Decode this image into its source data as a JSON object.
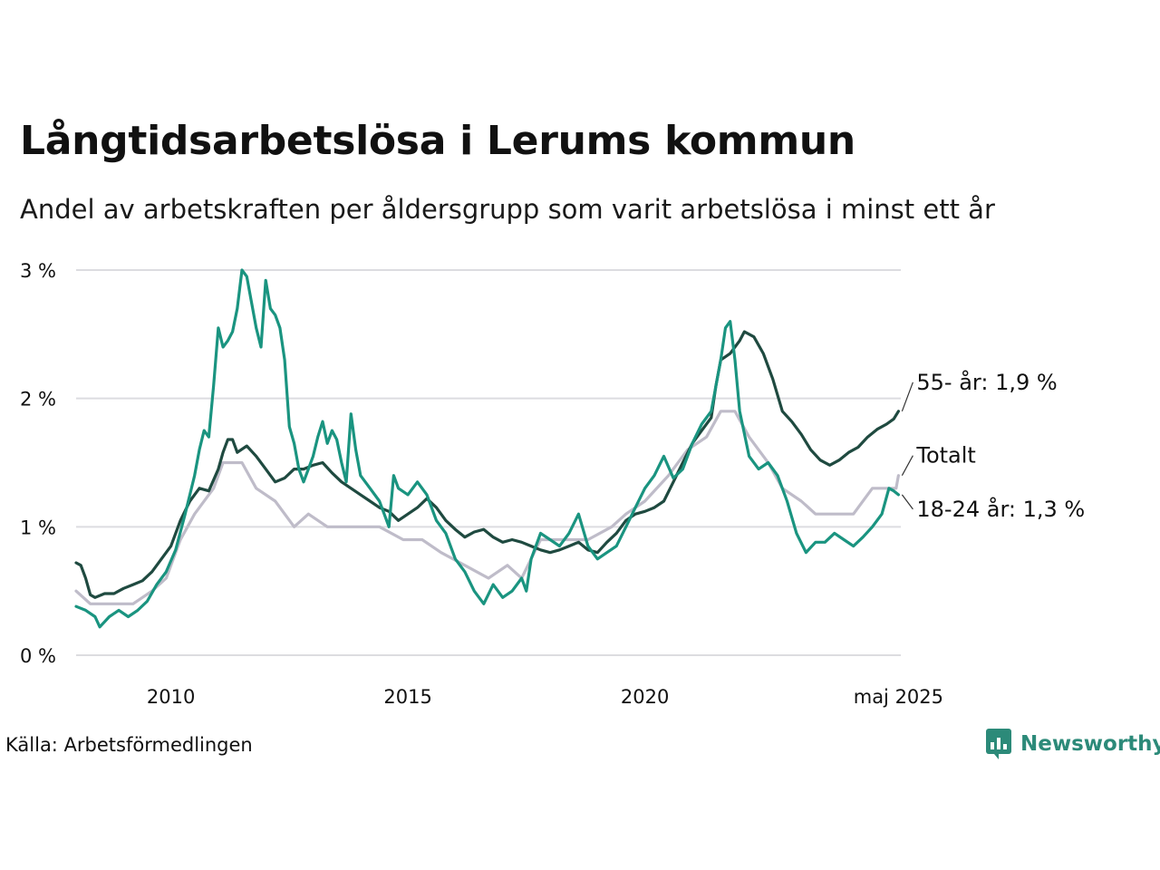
{
  "header": {
    "title": "Långtidsarbetslösa i Lerums kommun",
    "subtitle": "Andel av arbetskraften per åldersgrupp som varit arbetslösa i minst ett år"
  },
  "footer": {
    "source": "Källa: Arbetsförmedlingen",
    "brand": "Newsworthy",
    "brand_icon": "newsworthy-logo-icon",
    "brand_color": "#2c8a79"
  },
  "chart_data": {
    "type": "line",
    "ylim": [
      0,
      3
    ],
    "xlim": [
      2008.0,
      2025.4
    ],
    "y_ticks": [
      0,
      1,
      2,
      3
    ],
    "y_tick_labels": [
      "0 %",
      "1 %",
      "2 %",
      "3 %"
    ],
    "x_ticks": [
      2010,
      2015,
      2020,
      2025.35
    ],
    "x_tick_labels": [
      "2010",
      "2015",
      "2020",
      "maj 2025"
    ],
    "grid": true,
    "series": [
      {
        "name": "Totalt",
        "end_label": "Totalt",
        "color": "#bfbcc9",
        "points": [
          [
            2008.0,
            0.5
          ],
          [
            2008.3,
            0.4
          ],
          [
            2008.7,
            0.4
          ],
          [
            2009.2,
            0.4
          ],
          [
            2009.6,
            0.5
          ],
          [
            2009.9,
            0.6
          ],
          [
            2010.2,
            0.9
          ],
          [
            2010.5,
            1.1
          ],
          [
            2010.9,
            1.3
          ],
          [
            2011.1,
            1.5
          ],
          [
            2011.5,
            1.5
          ],
          [
            2011.8,
            1.3
          ],
          [
            2012.2,
            1.2
          ],
          [
            2012.6,
            1.0
          ],
          [
            2012.9,
            1.1
          ],
          [
            2013.3,
            1.0
          ],
          [
            2013.8,
            1.0
          ],
          [
            2014.4,
            1.0
          ],
          [
            2014.9,
            0.9
          ],
          [
            2015.3,
            0.9
          ],
          [
            2015.7,
            0.8
          ],
          [
            2016.2,
            0.7
          ],
          [
            2016.7,
            0.6
          ],
          [
            2017.1,
            0.7
          ],
          [
            2017.4,
            0.6
          ],
          [
            2017.8,
            0.9
          ],
          [
            2018.3,
            0.9
          ],
          [
            2018.8,
            0.9
          ],
          [
            2019.3,
            1.0
          ],
          [
            2019.6,
            1.1
          ],
          [
            2020.0,
            1.2
          ],
          [
            2020.5,
            1.4
          ],
          [
            2020.9,
            1.6
          ],
          [
            2021.3,
            1.7
          ],
          [
            2021.6,
            1.9
          ],
          [
            2021.9,
            1.9
          ],
          [
            2022.2,
            1.7
          ],
          [
            2022.6,
            1.5
          ],
          [
            2022.9,
            1.3
          ],
          [
            2023.3,
            1.2
          ],
          [
            2023.6,
            1.1
          ],
          [
            2024.0,
            1.1
          ],
          [
            2024.4,
            1.1
          ],
          [
            2024.8,
            1.3
          ],
          [
            2025.1,
            1.3
          ],
          [
            2025.3,
            1.3
          ],
          [
            2025.35,
            1.4
          ]
        ]
      },
      {
        "name": "55- år",
        "end_label": "55- år: 1,9 %",
        "color": "#1f4a40",
        "points": [
          [
            2008.0,
            0.72
          ],
          [
            2008.1,
            0.7
          ],
          [
            2008.2,
            0.6
          ],
          [
            2008.3,
            0.47
          ],
          [
            2008.4,
            0.45
          ],
          [
            2008.6,
            0.48
          ],
          [
            2008.8,
            0.48
          ],
          [
            2009.0,
            0.52
          ],
          [
            2009.2,
            0.55
          ],
          [
            2009.4,
            0.58
          ],
          [
            2009.6,
            0.65
          ],
          [
            2009.8,
            0.75
          ],
          [
            2010.0,
            0.85
          ],
          [
            2010.2,
            1.05
          ],
          [
            2010.4,
            1.2
          ],
          [
            2010.6,
            1.3
          ],
          [
            2010.8,
            1.28
          ],
          [
            2011.0,
            1.45
          ],
          [
            2011.1,
            1.58
          ],
          [
            2011.2,
            1.68
          ],
          [
            2011.3,
            1.68
          ],
          [
            2011.4,
            1.58
          ],
          [
            2011.6,
            1.63
          ],
          [
            2011.8,
            1.55
          ],
          [
            2012.0,
            1.45
          ],
          [
            2012.2,
            1.35
          ],
          [
            2012.4,
            1.38
          ],
          [
            2012.6,
            1.45
          ],
          [
            2012.8,
            1.45
          ],
          [
            2013.0,
            1.48
          ],
          [
            2013.2,
            1.5
          ],
          [
            2013.4,
            1.42
          ],
          [
            2013.6,
            1.35
          ],
          [
            2013.8,
            1.3
          ],
          [
            2014.0,
            1.25
          ],
          [
            2014.2,
            1.2
          ],
          [
            2014.4,
            1.15
          ],
          [
            2014.6,
            1.12
          ],
          [
            2014.8,
            1.05
          ],
          [
            2015.0,
            1.1
          ],
          [
            2015.2,
            1.15
          ],
          [
            2015.4,
            1.22
          ],
          [
            2015.6,
            1.15
          ],
          [
            2015.8,
            1.05
          ],
          [
            2016.0,
            0.98
          ],
          [
            2016.2,
            0.92
          ],
          [
            2016.4,
            0.96
          ],
          [
            2016.6,
            0.98
          ],
          [
            2016.8,
            0.92
          ],
          [
            2017.0,
            0.88
          ],
          [
            2017.2,
            0.9
          ],
          [
            2017.4,
            0.88
          ],
          [
            2017.6,
            0.85
          ],
          [
            2017.8,
            0.82
          ],
          [
            2018.0,
            0.8
          ],
          [
            2018.2,
            0.82
          ],
          [
            2018.4,
            0.85
          ],
          [
            2018.6,
            0.88
          ],
          [
            2018.8,
            0.82
          ],
          [
            2019.0,
            0.8
          ],
          [
            2019.2,
            0.88
          ],
          [
            2019.4,
            0.95
          ],
          [
            2019.6,
            1.05
          ],
          [
            2019.8,
            1.1
          ],
          [
            2020.0,
            1.12
          ],
          [
            2020.2,
            1.15
          ],
          [
            2020.4,
            1.2
          ],
          [
            2020.6,
            1.35
          ],
          [
            2020.8,
            1.5
          ],
          [
            2021.0,
            1.65
          ],
          [
            2021.2,
            1.75
          ],
          [
            2021.4,
            1.85
          ],
          [
            2021.5,
            2.1
          ],
          [
            2021.6,
            2.3
          ],
          [
            2021.8,
            2.35
          ],
          [
            2022.0,
            2.45
          ],
          [
            2022.1,
            2.52
          ],
          [
            2022.3,
            2.48
          ],
          [
            2022.5,
            2.35
          ],
          [
            2022.7,
            2.15
          ],
          [
            2022.9,
            1.9
          ],
          [
            2023.1,
            1.82
          ],
          [
            2023.3,
            1.72
          ],
          [
            2023.5,
            1.6
          ],
          [
            2023.7,
            1.52
          ],
          [
            2023.9,
            1.48
          ],
          [
            2024.1,
            1.52
          ],
          [
            2024.3,
            1.58
          ],
          [
            2024.5,
            1.62
          ],
          [
            2024.7,
            1.7
          ],
          [
            2024.9,
            1.76
          ],
          [
            2025.1,
            1.8
          ],
          [
            2025.25,
            1.84
          ],
          [
            2025.35,
            1.9
          ]
        ]
      },
      {
        "name": "18-24 år",
        "end_label": "18-24 år: 1,3 %",
        "color": "#1a9480",
        "points": [
          [
            2008.0,
            0.38
          ],
          [
            2008.2,
            0.35
          ],
          [
            2008.4,
            0.3
          ],
          [
            2008.5,
            0.22
          ],
          [
            2008.7,
            0.3
          ],
          [
            2008.9,
            0.35
          ],
          [
            2009.1,
            0.3
          ],
          [
            2009.3,
            0.35
          ],
          [
            2009.5,
            0.42
          ],
          [
            2009.7,
            0.55
          ],
          [
            2009.9,
            0.65
          ],
          [
            2010.1,
            0.82
          ],
          [
            2010.3,
            1.1
          ],
          [
            2010.5,
            1.4
          ],
          [
            2010.6,
            1.6
          ],
          [
            2010.7,
            1.75
          ],
          [
            2010.8,
            1.7
          ],
          [
            2010.9,
            2.1
          ],
          [
            2011.0,
            2.55
          ],
          [
            2011.1,
            2.4
          ],
          [
            2011.2,
            2.45
          ],
          [
            2011.3,
            2.52
          ],
          [
            2011.4,
            2.7
          ],
          [
            2011.5,
            3.0
          ],
          [
            2011.6,
            2.95
          ],
          [
            2011.7,
            2.75
          ],
          [
            2011.8,
            2.55
          ],
          [
            2011.9,
            2.4
          ],
          [
            2012.0,
            2.92
          ],
          [
            2012.1,
            2.7
          ],
          [
            2012.2,
            2.65
          ],
          [
            2012.3,
            2.55
          ],
          [
            2012.4,
            2.3
          ],
          [
            2012.5,
            1.78
          ],
          [
            2012.6,
            1.65
          ],
          [
            2012.7,
            1.45
          ],
          [
            2012.8,
            1.35
          ],
          [
            2012.9,
            1.45
          ],
          [
            2013.0,
            1.55
          ],
          [
            2013.1,
            1.7
          ],
          [
            2013.2,
            1.82
          ],
          [
            2013.3,
            1.65
          ],
          [
            2013.4,
            1.75
          ],
          [
            2013.5,
            1.68
          ],
          [
            2013.6,
            1.5
          ],
          [
            2013.7,
            1.35
          ],
          [
            2013.8,
            1.88
          ],
          [
            2013.9,
            1.6
          ],
          [
            2014.0,
            1.4
          ],
          [
            2014.2,
            1.3
          ],
          [
            2014.4,
            1.2
          ],
          [
            2014.6,
            1.0
          ],
          [
            2014.7,
            1.4
          ],
          [
            2014.8,
            1.3
          ],
          [
            2015.0,
            1.25
          ],
          [
            2015.2,
            1.35
          ],
          [
            2015.4,
            1.25
          ],
          [
            2015.6,
            1.05
          ],
          [
            2015.8,
            0.95
          ],
          [
            2016.0,
            0.75
          ],
          [
            2016.2,
            0.65
          ],
          [
            2016.4,
            0.5
          ],
          [
            2016.6,
            0.4
          ],
          [
            2016.8,
            0.55
          ],
          [
            2017.0,
            0.45
          ],
          [
            2017.2,
            0.5
          ],
          [
            2017.4,
            0.6
          ],
          [
            2017.5,
            0.5
          ],
          [
            2017.6,
            0.75
          ],
          [
            2017.8,
            0.95
          ],
          [
            2018.0,
            0.9
          ],
          [
            2018.2,
            0.85
          ],
          [
            2018.4,
            0.95
          ],
          [
            2018.6,
            1.1
          ],
          [
            2018.8,
            0.85
          ],
          [
            2019.0,
            0.75
          ],
          [
            2019.2,
            0.8
          ],
          [
            2019.4,
            0.85
          ],
          [
            2019.6,
            1.0
          ],
          [
            2019.8,
            1.15
          ],
          [
            2020.0,
            1.3
          ],
          [
            2020.2,
            1.4
          ],
          [
            2020.4,
            1.55
          ],
          [
            2020.6,
            1.38
          ],
          [
            2020.8,
            1.45
          ],
          [
            2021.0,
            1.65
          ],
          [
            2021.2,
            1.8
          ],
          [
            2021.4,
            1.9
          ],
          [
            2021.6,
            2.3
          ],
          [
            2021.7,
            2.55
          ],
          [
            2021.8,
            2.6
          ],
          [
            2021.9,
            2.3
          ],
          [
            2022.0,
            1.9
          ],
          [
            2022.2,
            1.55
          ],
          [
            2022.4,
            1.45
          ],
          [
            2022.6,
            1.5
          ],
          [
            2022.8,
            1.4
          ],
          [
            2023.0,
            1.2
          ],
          [
            2023.2,
            0.95
          ],
          [
            2023.4,
            0.8
          ],
          [
            2023.6,
            0.88
          ],
          [
            2023.8,
            0.88
          ],
          [
            2024.0,
            0.95
          ],
          [
            2024.2,
            0.9
          ],
          [
            2024.4,
            0.85
          ],
          [
            2024.6,
            0.92
          ],
          [
            2024.8,
            1.0
          ],
          [
            2025.0,
            1.1
          ],
          [
            2025.15,
            1.3
          ],
          [
            2025.25,
            1.28
          ],
          [
            2025.35,
            1.25
          ]
        ]
      }
    ]
  }
}
